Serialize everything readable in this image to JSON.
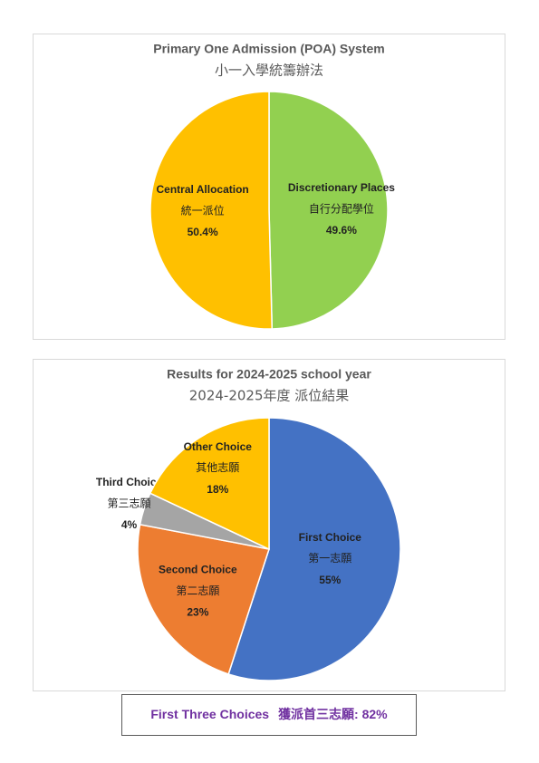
{
  "chart_data": [
    {
      "type": "pie",
      "title": "Primary One Admission (POA) System",
      "subtitle": "小一入學統籌辦法",
      "categories": [
        "Discretionary Places",
        "Central Allocation"
      ],
      "labels_zh": [
        "自行分配學位",
        "統一派位"
      ],
      "values": [
        49.6,
        50.4
      ],
      "value_labels": [
        "49.6%",
        "50.4%"
      ],
      "colors": [
        "#92d050",
        "#ffc000"
      ]
    },
    {
      "type": "pie",
      "title": "Results for 2024-2025 school year",
      "subtitle": "2024-2025年度 派位結果",
      "categories": [
        "First Choice",
        "Second Choice",
        "Third Choice",
        "Other Choice"
      ],
      "labels_zh": [
        "第一志願",
        "第二志願",
        "第三志願",
        "其他志願"
      ],
      "values": [
        55,
        23,
        4,
        18
      ],
      "value_labels": [
        "55%",
        "23%",
        "4%",
        "18%"
      ],
      "colors": [
        "#4472c4",
        "#ed7d31",
        "#a5a5a5",
        "#ffc000"
      ]
    }
  ],
  "note": {
    "text": "First Three Choices",
    "text_zh": "獲派首三志願: 82%"
  }
}
